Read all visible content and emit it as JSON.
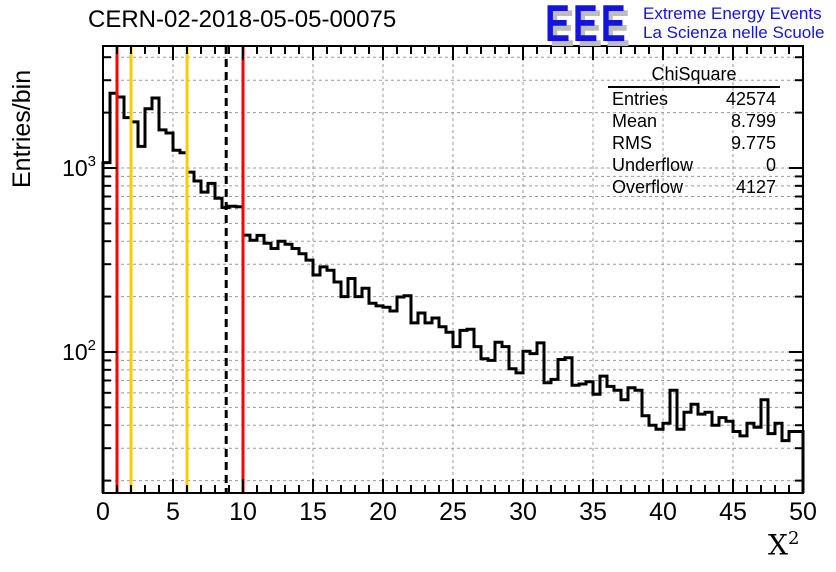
{
  "header": {
    "title": "CERN-02-2018-05-05-00075",
    "logo": {
      "acronym": "EEE",
      "line1": "Extreme Energy Events",
      "line2": "La Scienza nelle Scuole",
      "color": "#1414dd",
      "shadow_color": "#bdbdbd"
    }
  },
  "stats_box": {
    "title": "ChiSquare",
    "rows": [
      {
        "label": "Entries",
        "value": "42574"
      },
      {
        "label": "Mean",
        "value": "8.799"
      },
      {
        "label": "RMS",
        "value": "9.775"
      },
      {
        "label": "Underflow",
        "value": "0"
      },
      {
        "label": "Overflow",
        "value": "4127"
      }
    ]
  },
  "axes": {
    "y_title": "Entries/bin",
    "x_title_base": "X",
    "x_title_exp": "2"
  },
  "chart_data": {
    "type": "bar",
    "style": "step-histogram-outline",
    "title": "CERN-02-2018-05-05-00075",
    "xlabel": "X^2",
    "ylabel": "Entries/bin",
    "x_axis": {
      "min": 0,
      "max": 50,
      "major_tick_step": 5,
      "minor_tick_step": 1,
      "tick_labels": [
        "0",
        "5",
        "10",
        "15",
        "20",
        "25",
        "30",
        "35",
        "40",
        "45",
        "50"
      ]
    },
    "y_axis": {
      "scale": "log",
      "min": 17,
      "max": 4600,
      "tick_labels": [
        "10^2",
        "10^3"
      ],
      "tick_values": [
        100,
        1000
      ]
    },
    "grid": {
      "on": true,
      "color": "#999999",
      "style": "dashed"
    },
    "legend": "none",
    "line_color": "#000000",
    "bin_start": 0,
    "bin_width": 0.5,
    "values": [
      1070,
      2550,
      2430,
      1880,
      1780,
      1310,
      2100,
      2400,
      1610,
      1550,
      1250,
      1210,
      950,
      850,
      740,
      825,
      685,
      610,
      620,
      615,
      432,
      405,
      430,
      390,
      365,
      400,
      385,
      365,
      342,
      316,
      262,
      290,
      278,
      240,
      200,
      251,
      200,
      222,
      184,
      178,
      175,
      167,
      199,
      202,
      144,
      163,
      144,
      153,
      137,
      128,
      107,
      131,
      133,
      107,
      92,
      90,
      113,
      107,
      81,
      77,
      101,
      98,
      112,
      68,
      71,
      91,
      93,
      66,
      67,
      69,
      59,
      74,
      65,
      62,
      55,
      64,
      62,
      45,
      40,
      38,
      41,
      62,
      38,
      47,
      52,
      46,
      47,
      40,
      44,
      42,
      37,
      35,
      41,
      39,
      55,
      36,
      41,
      33,
      37,
      37
    ],
    "marker_lines": [
      {
        "x": 1,
        "color": "#ff0000",
        "style": "solid"
      },
      {
        "x": 2,
        "color": "#ffcc00",
        "style": "solid"
      },
      {
        "x": 6,
        "color": "#ffcc00",
        "style": "solid"
      },
      {
        "x": 8.8,
        "color": "#000000",
        "style": "dashed"
      },
      {
        "x": 10,
        "color": "#ff0000",
        "style": "solid"
      }
    ]
  }
}
